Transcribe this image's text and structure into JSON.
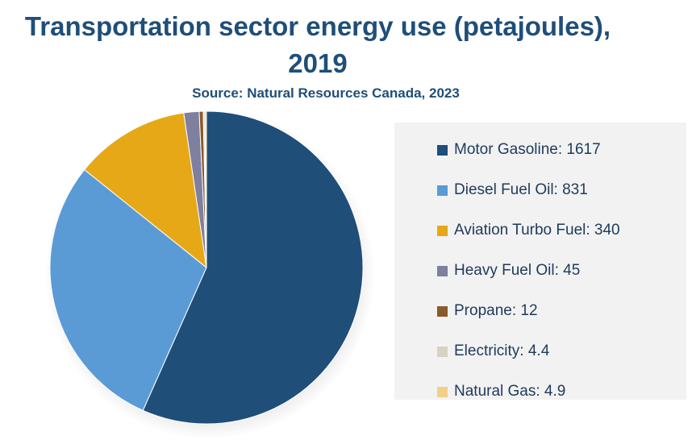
{
  "chart_data": {
    "type": "pie",
    "title_line1": "Transportation sector energy use (petajoules),",
    "title_line2": "2019",
    "subtitle": "Source: Natural Resources Canada, 2023",
    "legend_position": "right",
    "slices": [
      {
        "label": "Motor Gasoline",
        "value": 1617,
        "display": "Motor Gasoline: 1617",
        "color": "#1F4E79"
      },
      {
        "label": "Diesel Fuel Oil",
        "value": 831,
        "display": "Diesel Fuel Oil: 831",
        "color": "#5B9BD5"
      },
      {
        "label": "Aviation Turbo Fuel",
        "value": 340,
        "display": "Aviation Turbo Fuel: 340",
        "color": "#E6A817"
      },
      {
        "label": "Heavy Fuel Oil",
        "value": 45,
        "display": "Heavy Fuel Oil: 45",
        "color": "#7F7F9F"
      },
      {
        "label": "Propane",
        "value": 12,
        "display": "Propane: 12",
        "color": "#8B5A2B"
      },
      {
        "label": "Electricity",
        "value": 4.4,
        "display": "Electricity: 4.4",
        "color": "#D6D2C4"
      },
      {
        "label": "Natural Gas",
        "value": 4.9,
        "display": "Natural Gas: 4.9",
        "color": "#F2D08A"
      }
    ]
  }
}
